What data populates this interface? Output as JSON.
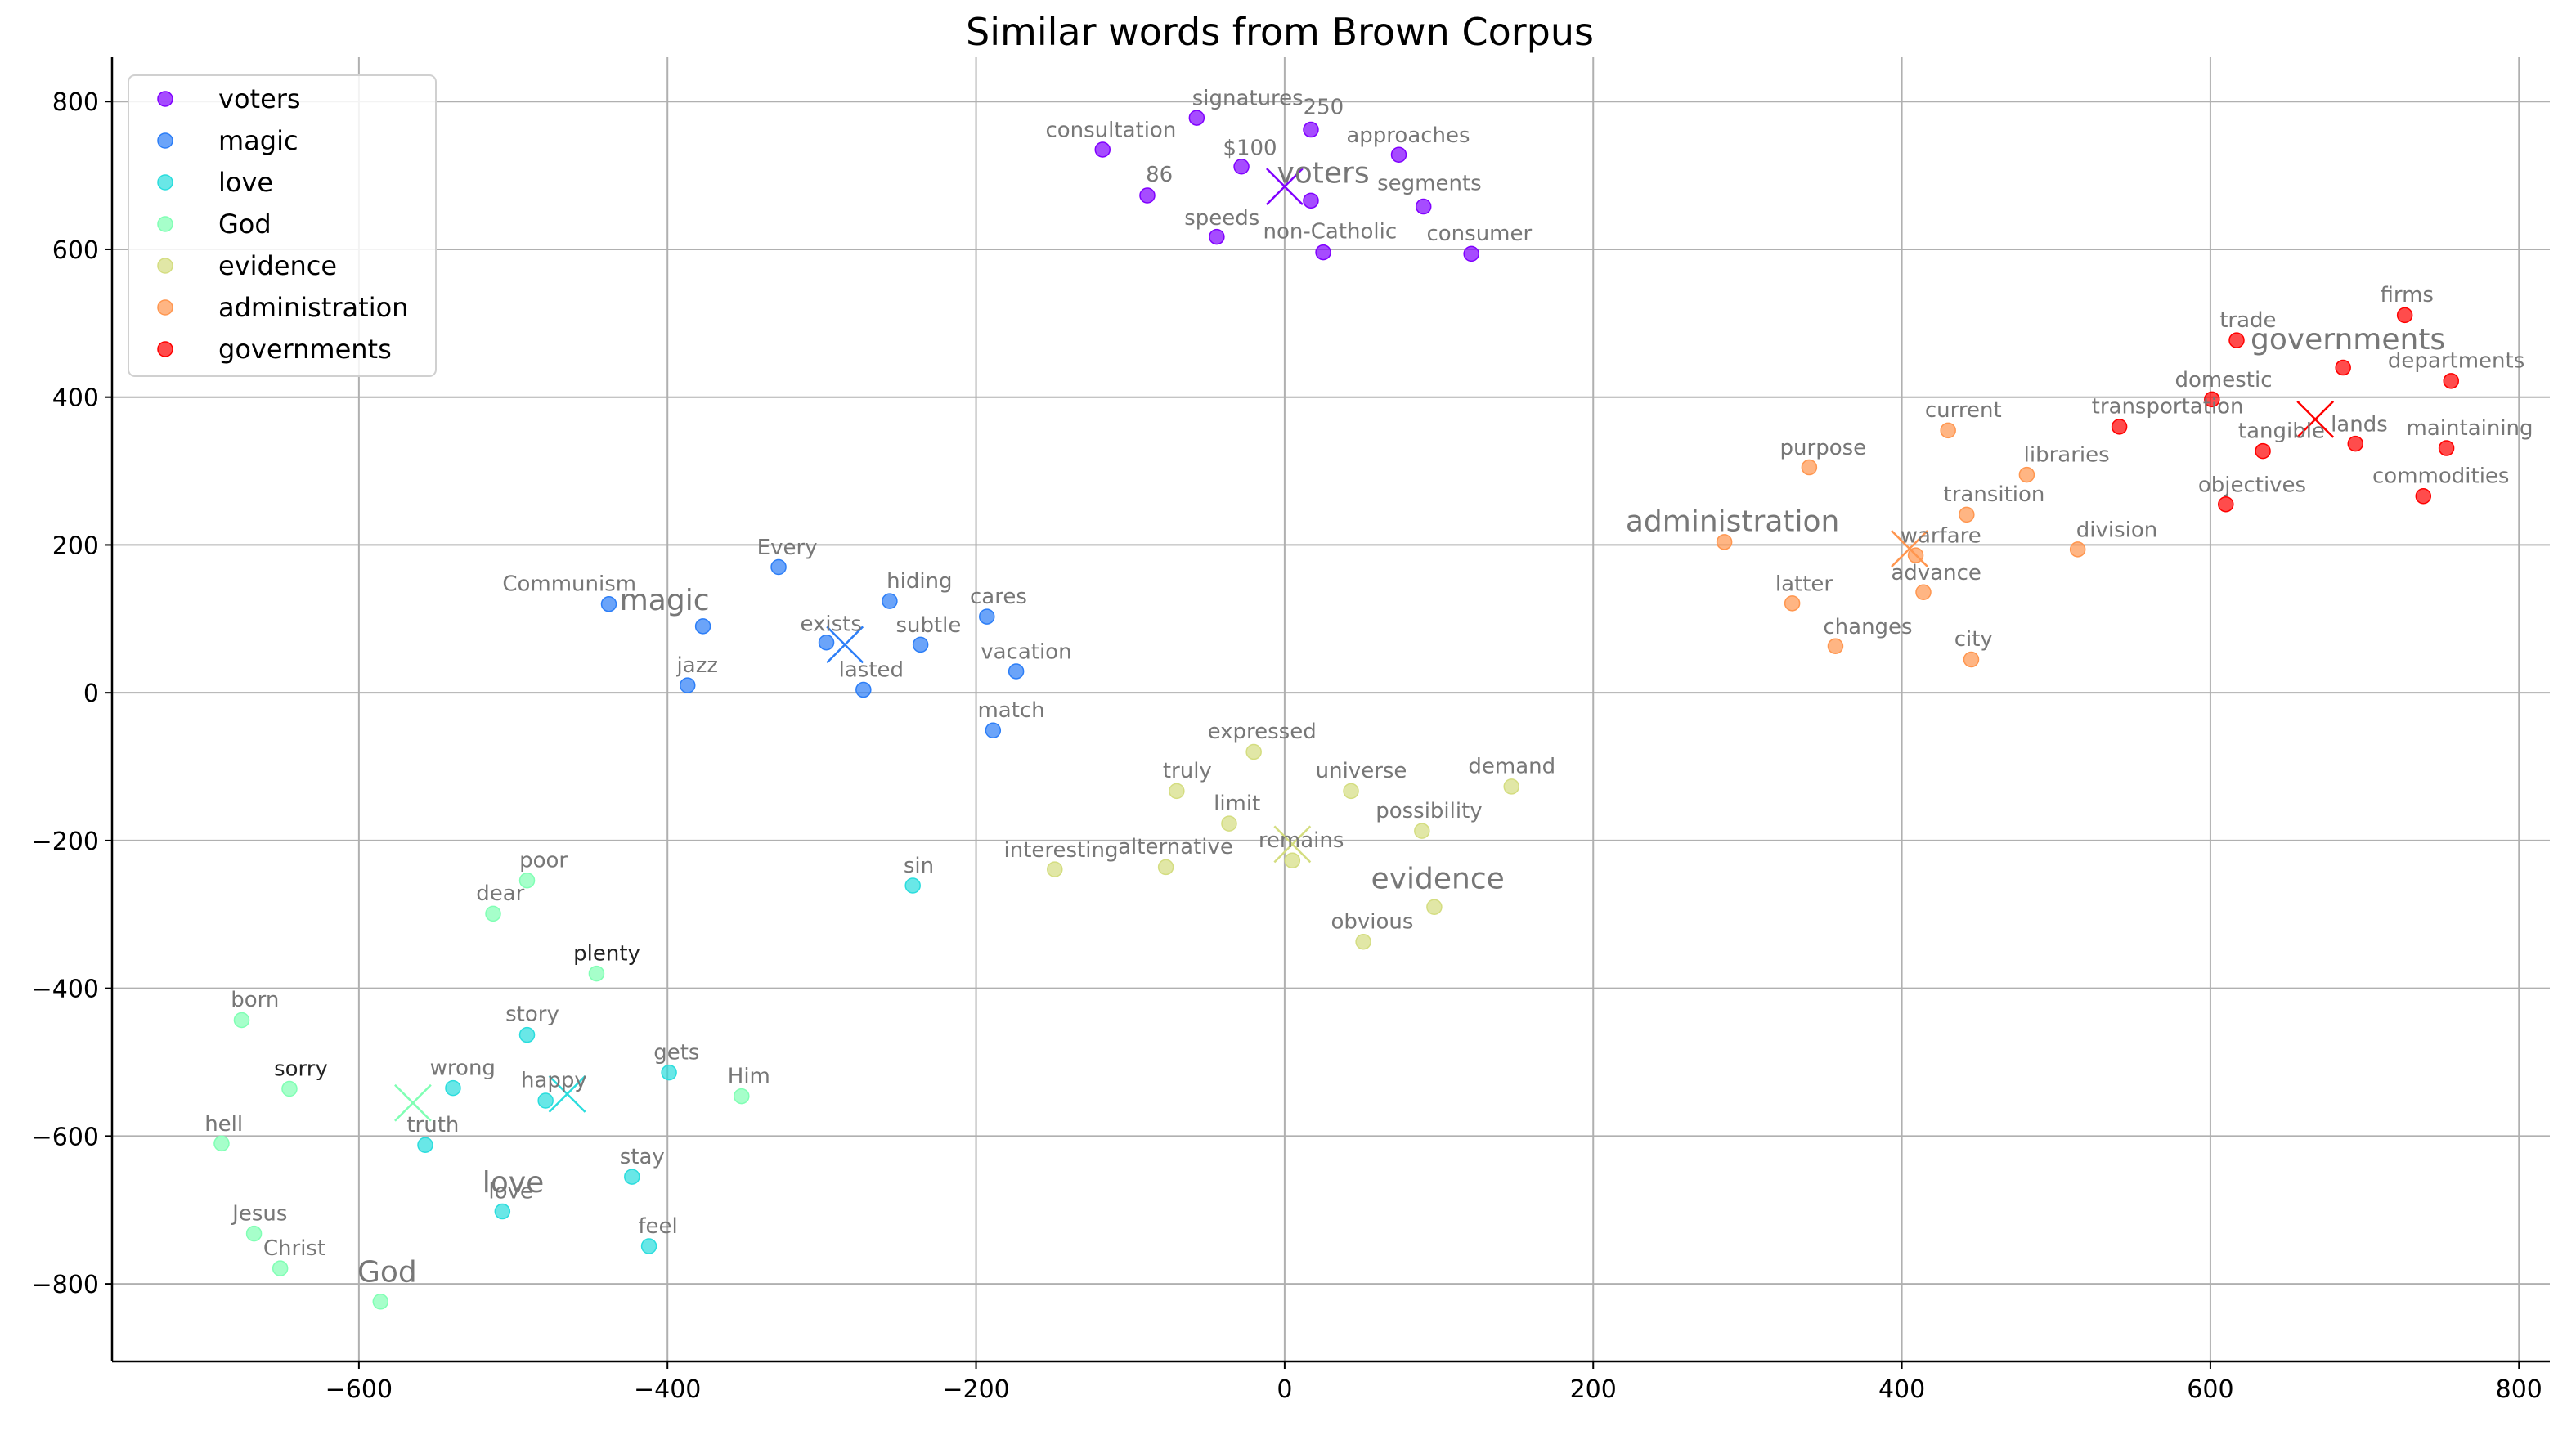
{
  "chart_data": {
    "type": "scatter",
    "title": "Similar words from Brown Corpus",
    "xlabel": "",
    "ylabel": "",
    "xlim": [
      -760,
      820
    ],
    "ylim": [
      -905,
      860
    ],
    "xticks": [
      -600,
      -400,
      -200,
      0,
      200,
      400,
      600,
      800
    ],
    "yticks": [
      -800,
      -600,
      -400,
      -200,
      0,
      200,
      400,
      600,
      800
    ],
    "xtick_labels": [
      "−600",
      "−400",
      "−200",
      "0",
      "200",
      "400",
      "600",
      "800"
    ],
    "ytick_labels": [
      "−800",
      "−600",
      "−400",
      "−200",
      "0",
      "200",
      "400",
      "600",
      "800"
    ],
    "grid": true,
    "legend": "upper-left",
    "series": [
      {
        "name": "voters",
        "color": "#8000ff",
        "centroid": {
          "x": 0,
          "y": 685,
          "label": "voters"
        },
        "points": [
          {
            "x": -57,
            "y": 778,
            "label": "signatures"
          },
          {
            "x": 17,
            "y": 762,
            "label": "250"
          },
          {
            "x": -118,
            "y": 735,
            "label": "consultation"
          },
          {
            "x": 74,
            "y": 728,
            "label": "approaches"
          },
          {
            "x": -28,
            "y": 712,
            "label": "$100"
          },
          {
            "x": -89,
            "y": 673,
            "label": "86"
          },
          {
            "x": 17,
            "y": 666,
            "label": "segments"
          },
          {
            "x": 90,
            "y": 658,
            "label": "speeds"
          },
          {
            "x": -44,
            "y": 617,
            "label": "speeds"
          },
          {
            "x": 25,
            "y": 596,
            "label": "non-Catholic"
          },
          {
            "x": 121,
            "y": 594,
            "label": "consumer"
          }
        ]
      },
      {
        "name": "magic",
        "color": "#2c7ef7",
        "centroid": {
          "x": -285,
          "y": 65,
          "label": "magic"
        },
        "points": [
          {
            "x": -328,
            "y": 170,
            "label": "Every"
          },
          {
            "x": -256,
            "y": 124,
            "label": "hiding"
          },
          {
            "x": -438,
            "y": 120,
            "label": "Communism"
          },
          {
            "x": -193,
            "y": 103,
            "label": "cares"
          },
          {
            "x": -377,
            "y": 90,
            "label": "magic"
          },
          {
            "x": -297,
            "y": 68,
            "label": "exists"
          },
          {
            "x": -236,
            "y": 65,
            "label": "subtle"
          },
          {
            "x": -174,
            "y": 29,
            "label": "vacation"
          },
          {
            "x": -387,
            "y": 10,
            "label": "jazz"
          },
          {
            "x": -273,
            "y": 4,
            "label": "lasted"
          },
          {
            "x": -189,
            "y": -51,
            "label": "match"
          }
        ]
      },
      {
        "name": "love",
        "color": "#2adddd",
        "centroid": {
          "x": -465,
          "y": -543,
          "label": "love"
        },
        "points": [
          {
            "x": -241,
            "y": -261,
            "label": "sin"
          },
          {
            "x": -491,
            "y": -463,
            "label": "story"
          },
          {
            "x": -399,
            "y": -514,
            "label": "gets"
          },
          {
            "x": -539,
            "y": -535,
            "label": "wrong"
          },
          {
            "x": -479,
            "y": -552,
            "label": "happy"
          },
          {
            "x": -557,
            "y": -612,
            "label": "truth"
          },
          {
            "x": -423,
            "y": -655,
            "label": "stay"
          },
          {
            "x": -507,
            "y": -702,
            "label": "love"
          },
          {
            "x": -412,
            "y": -749,
            "label": "feel"
          }
        ]
      },
      {
        "name": "God",
        "color": "#80ffb4",
        "centroid": {
          "x": -565,
          "y": -555,
          "label": "God"
        },
        "points": [
          {
            "x": -491,
            "y": -254,
            "label": "poor"
          },
          {
            "x": -513,
            "y": -299,
            "label": "dear"
          },
          {
            "x": -446,
            "y": -380,
            "label": "plenty"
          },
          {
            "x": -676,
            "y": -443,
            "label": "born"
          },
          {
            "x": -645,
            "y": -536,
            "label": "sorry"
          },
          {
            "x": -352,
            "y": -546,
            "label": "Him"
          },
          {
            "x": -689,
            "y": -610,
            "label": "hell"
          },
          {
            "x": -668,
            "y": -732,
            "label": "Jesus"
          },
          {
            "x": -651,
            "y": -779,
            "label": "Christ"
          },
          {
            "x": -586,
            "y": -824,
            "label": "God"
          }
        ]
      },
      {
        "name": "evidence",
        "color": "#d4dd80",
        "centroid": {
          "x": 5,
          "y": -205,
          "label": "evidence"
        },
        "points": [
          {
            "x": -20,
            "y": -80,
            "label": "expressed"
          },
          {
            "x": 147,
            "y": -127,
            "label": "demand"
          },
          {
            "x": -70,
            "y": -133,
            "label": "truly"
          },
          {
            "x": 43,
            "y": -133,
            "label": "universe"
          },
          {
            "x": -36,
            "y": -177,
            "label": "limit"
          },
          {
            "x": 89,
            "y": -187,
            "label": "possibility"
          },
          {
            "x": 5,
            "y": -227,
            "label": "remains"
          },
          {
            "x": -77,
            "y": -236,
            "label": "alternative"
          },
          {
            "x": -149,
            "y": -239,
            "label": "interesting"
          },
          {
            "x": 97,
            "y": -290,
            "label": "possibility"
          },
          {
            "x": 51,
            "y": -337,
            "label": "obvious"
          }
        ]
      },
      {
        "name": "administration",
        "color": "#ff964f",
        "centroid": {
          "x": 405,
          "y": 195,
          "label": "administration"
        },
        "points": [
          {
            "x": 430,
            "y": 355,
            "label": "current"
          },
          {
            "x": 340,
            "y": 305,
            "label": "purpose"
          },
          {
            "x": 481,
            "y": 295,
            "label": "libraries"
          },
          {
            "x": 442,
            "y": 241,
            "label": "transition"
          },
          {
            "x": 285,
            "y": 204,
            "label": "administration"
          },
          {
            "x": 514,
            "y": 194,
            "label": "division"
          },
          {
            "x": 409,
            "y": 186,
            "label": "warfare"
          },
          {
            "x": 414,
            "y": 136,
            "label": "advance"
          },
          {
            "x": 329,
            "y": 121,
            "label": "latter"
          },
          {
            "x": 357,
            "y": 63,
            "label": "changes"
          },
          {
            "x": 445,
            "y": 45,
            "label": "city"
          }
        ]
      },
      {
        "name": "governments",
        "color": "#ff0000",
        "centroid": {
          "x": 668,
          "y": 370,
          "label": "governments"
        },
        "points": [
          {
            "x": 726,
            "y": 511,
            "label": "firms"
          },
          {
            "x": 617,
            "y": 477,
            "label": "trade"
          },
          {
            "x": 686,
            "y": 440,
            "label": "governments"
          },
          {
            "x": 756,
            "y": 422,
            "label": "departments"
          },
          {
            "x": 601,
            "y": 397,
            "label": "domestic"
          },
          {
            "x": 541,
            "y": 360,
            "label": "transportation"
          },
          {
            "x": 694,
            "y": 337,
            "label": "lands"
          },
          {
            "x": 753,
            "y": 331,
            "label": "maintaining"
          },
          {
            "x": 634,
            "y": 327,
            "label": "tangible"
          },
          {
            "x": 738,
            "y": 266,
            "label": "commodities"
          },
          {
            "x": 610,
            "y": 255,
            "label": "objectives"
          }
        ]
      }
    ],
    "point_labels": [
      {
        "x": -60,
        "y": 795,
        "text": "signatures"
      },
      {
        "x": 12,
        "y": 783,
        "text": "250"
      },
      {
        "x": -155,
        "y": 752,
        "text": "consultation"
      },
      {
        "x": 40,
        "y": 745,
        "text": "approaches"
      },
      {
        "x": -40,
        "y": 728,
        "text": "$100"
      },
      {
        "x": -90,
        "y": 692,
        "text": "86"
      },
      {
        "x": 60,
        "y": 680,
        "text": "segments"
      },
      {
        "x": -65,
        "y": 633,
        "text": "speeds"
      },
      {
        "x": -14,
        "y": 615,
        "text": "non-Catholic"
      },
      {
        "x": 92,
        "y": 612,
        "text": "consumer"
      },
      {
        "x": -342,
        "y": 187,
        "text": "Every"
      },
      {
        "x": -258,
        "y": 142,
        "text": "hiding"
      },
      {
        "x": -507,
        "y": 138,
        "text": "Communism"
      },
      {
        "x": -204,
        "y": 121,
        "text": "cares"
      },
      {
        "x": -314,
        "y": 84,
        "text": "exists"
      },
      {
        "x": -252,
        "y": 82,
        "text": "subtle"
      },
      {
        "x": -197,
        "y": 46,
        "text": "vacation"
      },
      {
        "x": -394,
        "y": 28,
        "text": "jazz"
      },
      {
        "x": -289,
        "y": 22,
        "text": "lasted"
      },
      {
        "x": -199,
        "y": -33,
        "text": "match"
      },
      {
        "x": -50,
        "y": -62,
        "text": "expressed"
      },
      {
        "x": 119,
        "y": -109,
        "text": "demand"
      },
      {
        "x": -79,
        "y": -115,
        "text": "truly"
      },
      {
        "x": 20,
        "y": -115,
        "text": "universe"
      },
      {
        "x": -46,
        "y": -159,
        "text": "limit"
      },
      {
        "x": 59,
        "y": -169,
        "text": "possibility"
      },
      {
        "x": -17,
        "y": -209,
        "text": "remains"
      },
      {
        "x": -108,
        "y": -218,
        "text": "alternative"
      },
      {
        "x": -182,
        "y": -222,
        "text": "interesting"
      },
      {
        "x": 30,
        "y": -319,
        "text": "obvious"
      },
      {
        "x": -247,
        "y": -243,
        "text": "sin"
      },
      {
        "x": -496,
        "y": -236,
        "text": "poor"
      },
      {
        "x": -524,
        "y": -281,
        "text": "dear"
      },
      {
        "x": -461,
        "y": -362,
        "text": "plenty",
        "dark": true
      },
      {
        "x": -683,
        "y": -425,
        "text": "born"
      },
      {
        "x": -655,
        "y": -518,
        "text": "sorry",
        "dark": true
      },
      {
        "x": -505,
        "y": -444,
        "text": "story"
      },
      {
        "x": -409,
        "y": -496,
        "text": "gets"
      },
      {
        "x": -554,
        "y": -517,
        "text": "wrong"
      },
      {
        "x": -495,
        "y": -534,
        "text": "happy"
      },
      {
        "x": -361,
        "y": -528,
        "text": "Him"
      },
      {
        "x": -700,
        "y": -593,
        "text": "hell"
      },
      {
        "x": -569,
        "y": -594,
        "text": "truth"
      },
      {
        "x": -431,
        "y": -637,
        "text": "stay"
      },
      {
        "x": -516,
        "y": -684,
        "text": "love"
      },
      {
        "x": -682,
        "y": -714,
        "text": "Jesus"
      },
      {
        "x": -662,
        "y": -761,
        "text": "Christ"
      },
      {
        "x": -419,
        "y": -731,
        "text": "feel"
      },
      {
        "x": 1,
        "y": -212,
        "text": ""
      },
      {
        "x": 415,
        "y": 373,
        "text": "current"
      },
      {
        "x": 321,
        "y": 322,
        "text": "purpose"
      },
      {
        "x": 479,
        "y": 313,
        "text": "libraries"
      },
      {
        "x": 427,
        "y": 259,
        "text": "transition"
      },
      {
        "x": 513,
        "y": 211,
        "text": "division"
      },
      {
        "x": 399,
        "y": 203,
        "text": "warfare"
      },
      {
        "x": 393,
        "y": 153,
        "text": "advance"
      },
      {
        "x": 318,
        "y": 138,
        "text": "latter"
      },
      {
        "x": 349,
        "y": 80,
        "text": "changes"
      },
      {
        "x": 434,
        "y": 63,
        "text": "city"
      },
      {
        "x": 710,
        "y": 529,
        "text": "firms"
      },
      {
        "x": 606,
        "y": 495,
        "text": "trade"
      },
      {
        "x": 715,
        "y": 440,
        "text": "departments"
      },
      {
        "x": 577,
        "y": 414,
        "text": "domestic"
      },
      {
        "x": 523,
        "y": 378,
        "text": "transportation"
      },
      {
        "x": 678,
        "y": 354,
        "text": "lands"
      },
      {
        "x": 727,
        "y": 349,
        "text": "maintaining"
      },
      {
        "x": 618,
        "y": 345,
        "text": "tangible"
      },
      {
        "x": 705,
        "y": 284,
        "text": "commodities"
      },
      {
        "x": 592,
        "y": 272,
        "text": "objectives"
      }
    ],
    "group_labels": [
      {
        "x": -5,
        "y": 690,
        "text": "voters"
      },
      {
        "x": -431,
        "y": 112,
        "text": "magic"
      },
      {
        "x": 56,
        "y": -265,
        "text": "evidence"
      },
      {
        "x": -520,
        "y": -676,
        "text": "love"
      },
      {
        "x": -601,
        "y": -797,
        "text": "God"
      },
      {
        "x": 221,
        "y": 219,
        "text": "administration"
      },
      {
        "x": 626,
        "y": 465,
        "text": "governments"
      }
    ]
  }
}
